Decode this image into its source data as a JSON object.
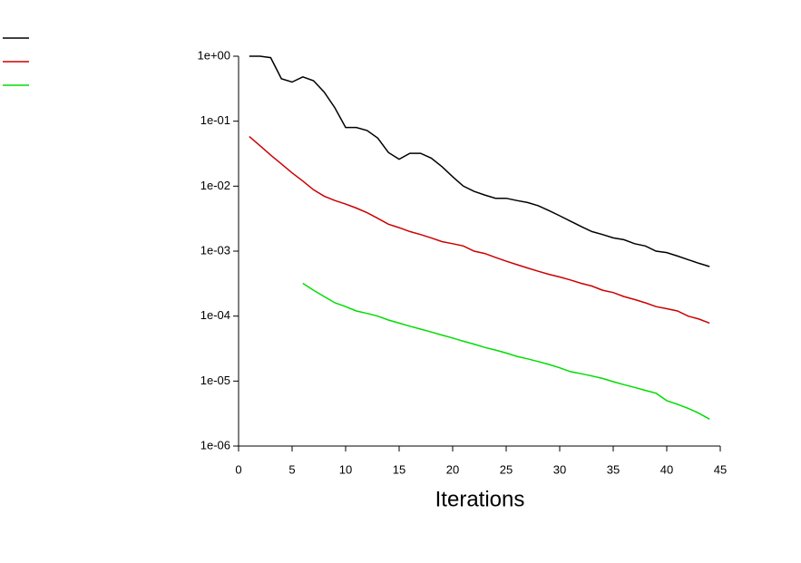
{
  "chart_data": {
    "type": "line",
    "x": [
      1,
      2,
      3,
      4,
      5,
      6,
      7,
      8,
      9,
      10,
      11,
      12,
      13,
      14,
      15,
      16,
      17,
      18,
      19,
      20,
      21,
      22,
      23,
      24,
      25,
      26,
      27,
      28,
      29,
      30,
      31,
      32,
      33,
      34,
      35,
      36,
      37,
      38,
      39,
      40,
      41,
      42,
      43,
      44
    ],
    "series": [
      {
        "color": "#000000",
        "values": [
          1,
          1,
          0.95,
          0.45,
          0.4,
          0.48,
          0.42,
          0.28,
          0.16,
          0.08,
          0.08,
          0.072,
          0.055,
          0.033,
          0.026,
          0.032,
          0.032,
          0.027,
          0.02,
          0.014,
          0.01,
          0.0083,
          0.0073,
          0.0065,
          0.0065,
          0.006,
          0.0056,
          0.005,
          0.0042,
          0.0035,
          0.0029,
          0.0024,
          0.002,
          0.0018,
          0.0016,
          0.0015,
          0.0013,
          0.0012,
          0.001,
          0.00095,
          0.00084,
          0.00074,
          0.00065,
          0.00058
        ]
      },
      {
        "color": "#cc0000",
        "values": [
          0.058,
          0.042,
          0.03,
          0.022,
          0.016,
          0.012,
          0.0088,
          0.007,
          0.006,
          0.0053,
          0.0046,
          0.0039,
          0.0032,
          0.0026,
          0.0023,
          0.002,
          0.0018,
          0.0016,
          0.0014,
          0.0013,
          0.0012,
          0.001,
          0.00092,
          0.0008,
          0.0007,
          0.00062,
          0.00055,
          0.00049,
          0.00044,
          0.0004,
          0.00036,
          0.00032,
          0.00029,
          0.00025,
          0.00023,
          0.0002,
          0.00018,
          0.00016,
          0.00014,
          0.00013,
          0.00012,
          0.0001,
          9e-05,
          7.8e-05
        ]
      },
      {
        "color": "#00dd00",
        "values": [
          null,
          null,
          null,
          null,
          null,
          0.00032,
          0.00025,
          0.0002,
          0.00016,
          0.00014,
          0.00012,
          0.00011,
          0.0001,
          8.7e-05,
          7.8e-05,
          7e-05,
          6.3e-05,
          5.7e-05,
          5.1e-05,
          4.6e-05,
          4.1e-05,
          3.7e-05,
          3.3e-05,
          3e-05,
          2.7e-05,
          2.4e-05,
          2.2e-05,
          2e-05,
          1.8e-05,
          1.6e-05,
          1.4e-05,
          1.3e-05,
          1.2e-05,
          1.1e-05,
          9.8e-06,
          8.8e-06,
          8e-06,
          7.2e-06,
          6.5e-06,
          5e-06,
          4.4e-06,
          3.8e-06,
          3.2e-06,
          2.6e-06
        ]
      }
    ],
    "x_label": "Iterations",
    "xlim": [
      0,
      45
    ],
    "xticks": [
      0,
      5,
      10,
      15,
      20,
      25,
      30,
      35,
      40,
      45
    ],
    "ylim": [
      1e-06,
      1
    ],
    "log_y": true,
    "yticks": [
      {
        "value": 1e-06,
        "label": "1e-06"
      },
      {
        "value": 1e-05,
        "label": "1e-05"
      },
      {
        "value": 0.0001,
        "label": "1e-04"
      },
      {
        "value": 0.001,
        "label": "1e-03"
      },
      {
        "value": 0.01,
        "label": "1e-02"
      },
      {
        "value": 0.1,
        "label": "1e-01"
      },
      {
        "value": 1,
        "label": "1e+00"
      }
    ],
    "legend": "top-left"
  }
}
